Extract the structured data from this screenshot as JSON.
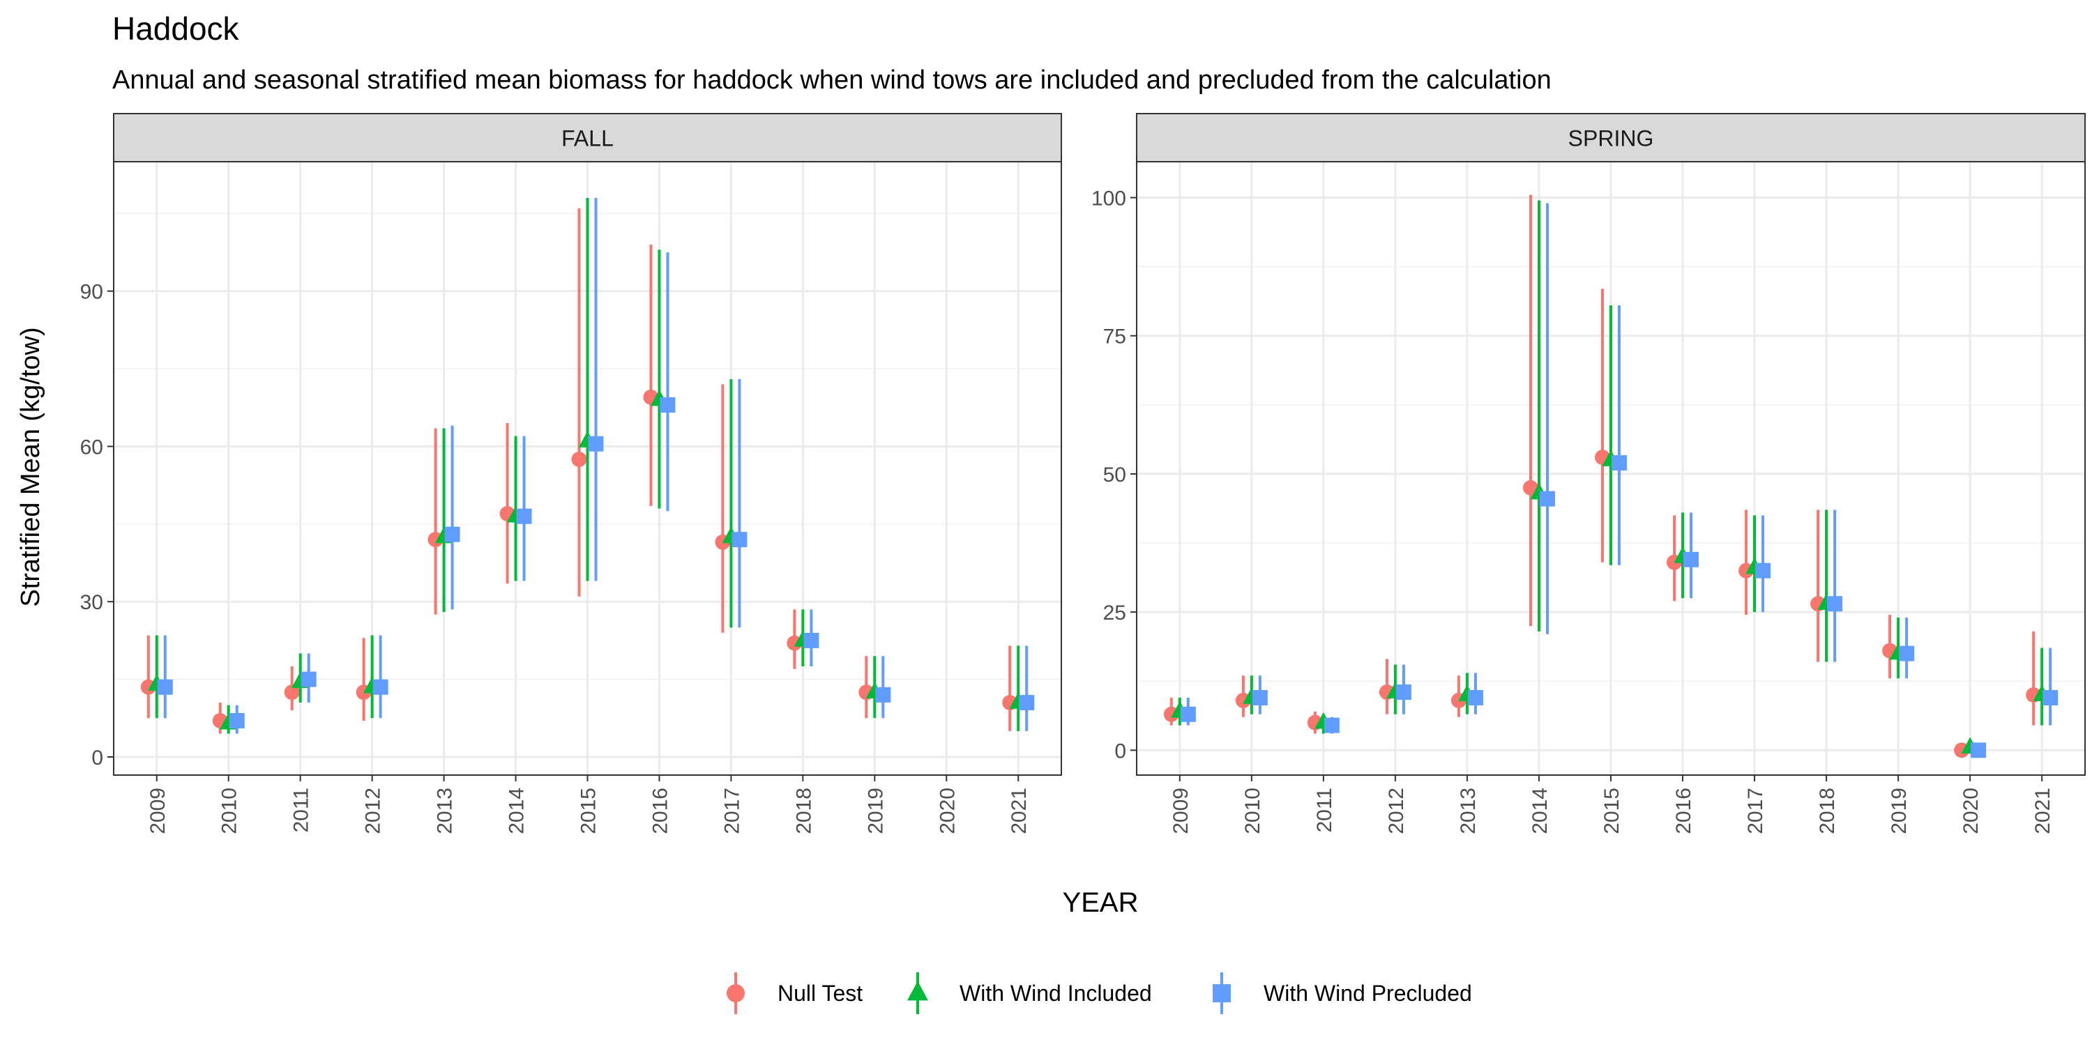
{
  "chart_data": {
    "type": "scatter",
    "title": "Haddock",
    "subtitle": "Annual and seasonal stratified mean biomass for haddock when wind tows are included and precluded from the calculation",
    "xlabel": "YEAR",
    "ylabel": "Stratified Mean (kg/tow)",
    "legend_position": "bottom",
    "grid": true,
    "series_names": [
      "Null Test",
      "With Wind Included",
      "With Wind Precluded"
    ],
    "series_colors": [
      "#F8766D",
      "#00BA38",
      "#619CFF"
    ],
    "series_shapes": [
      "circle",
      "triangle",
      "square"
    ],
    "panels": [
      {
        "name": "FALL",
        "categories": [
          "2009",
          "2010",
          "2011",
          "2012",
          "2013",
          "2014",
          "2015",
          "2016",
          "2017",
          "2018",
          "2019",
          "2020",
          "2021"
        ],
        "ylim": [
          -3.5,
          115
        ],
        "yticks": [
          0,
          30,
          60,
          90
        ],
        "series": [
          {
            "name": "Null Test",
            "values": [
              13.5,
              7,
              12.5,
              12.5,
              42,
              47,
              57.5,
              69.5,
              41.5,
              22,
              12.5,
              null,
              10.5
            ],
            "lower": [
              7.5,
              4.5,
              9,
              7,
              27.5,
              33.5,
              31,
              48.5,
              24,
              17,
              7.5,
              null,
              5
            ],
            "upper": [
              23.5,
              10.5,
              17.5,
              23,
              63.5,
              64.5,
              106,
              99,
              72,
              28.5,
              19.5,
              null,
              21.5
            ]
          },
          {
            "name": "With Wind Included",
            "values": [
              14,
              6.5,
              14.5,
              13.5,
              42.5,
              46.5,
              61,
              69,
              42.5,
              22.5,
              12.5,
              null,
              10.5
            ],
            "lower": [
              7.5,
              4.5,
              10.5,
              7.5,
              28,
              34,
              34,
              48,
              25,
              17.5,
              7.5,
              null,
              5
            ],
            "upper": [
              23.5,
              10,
              20,
              23.5,
              63.5,
              62,
              108,
              98,
              73,
              28.5,
              19.5,
              null,
              21.5
            ]
          },
          {
            "name": "With Wind Precluded",
            "values": [
              13.5,
              7,
              15,
              13.5,
              43,
              46.5,
              60.5,
              68,
              42,
              22.5,
              12,
              null,
              10.5
            ],
            "lower": [
              7.5,
              4.5,
              10.5,
              7.5,
              28.5,
              34,
              34,
              47.5,
              25,
              17.5,
              7.5,
              null,
              5
            ],
            "upper": [
              23.5,
              10,
              20,
              23.5,
              64,
              62,
              108,
              97.5,
              73,
              28.5,
              19.5,
              null,
              21.5
            ]
          }
        ]
      },
      {
        "name": "SPRING",
        "categories": [
          "2009",
          "2010",
          "2011",
          "2012",
          "2013",
          "2014",
          "2015",
          "2016",
          "2017",
          "2018",
          "2019",
          "2020",
          "2021"
        ],
        "ylim": [
          -4.5,
          106.5
        ],
        "yticks": [
          0,
          25,
          50,
          75,
          100
        ],
        "series": [
          {
            "name": "Null Test",
            "values": [
              6.5,
              9,
              5,
              10.5,
              9,
              47.5,
              53,
              34,
              32.5,
              26.5,
              18,
              0,
              10
            ],
            "lower": [
              4.5,
              6,
              3,
              6.5,
              6,
              22.5,
              34,
              27,
              24.5,
              16,
              13,
              0,
              4.5
            ],
            "upper": [
              9.5,
              13.5,
              7,
              16.5,
              13.5,
              100.5,
              83.5,
              42.5,
              43.5,
              43.5,
              24.5,
              0.5,
              21.5
            ]
          },
          {
            "name": "With Wind Included",
            "values": [
              7,
              9.5,
              5,
              10.5,
              10,
              46.5,
              52.5,
              35,
              33,
              26.5,
              17.5,
              0.5,
              10
            ],
            "lower": [
              4.5,
              6.5,
              3,
              6.5,
              6.5,
              21.5,
              33.5,
              27.5,
              25,
              16,
              13,
              0,
              4.5
            ],
            "upper": [
              9.5,
              13.5,
              6.5,
              15.5,
              14,
              99.5,
              80.5,
              43,
              42.5,
              43.5,
              24,
              0.5,
              18.5
            ]
          },
          {
            "name": "With Wind Precluded",
            "values": [
              6.5,
              9.5,
              4.5,
              10.5,
              9.5,
              45.5,
              52,
              34.5,
              32.5,
              26.5,
              17.5,
              0,
              9.5
            ],
            "lower": [
              4.5,
              6.5,
              3,
              6.5,
              6.5,
              21,
              33.5,
              27.5,
              25,
              16,
              13,
              0,
              4.5
            ],
            "upper": [
              9.5,
              13.5,
              6,
              15.5,
              14,
              99,
              80.5,
              43,
              42.5,
              43.5,
              24,
              0.5,
              18.5
            ]
          }
        ]
      }
    ]
  }
}
